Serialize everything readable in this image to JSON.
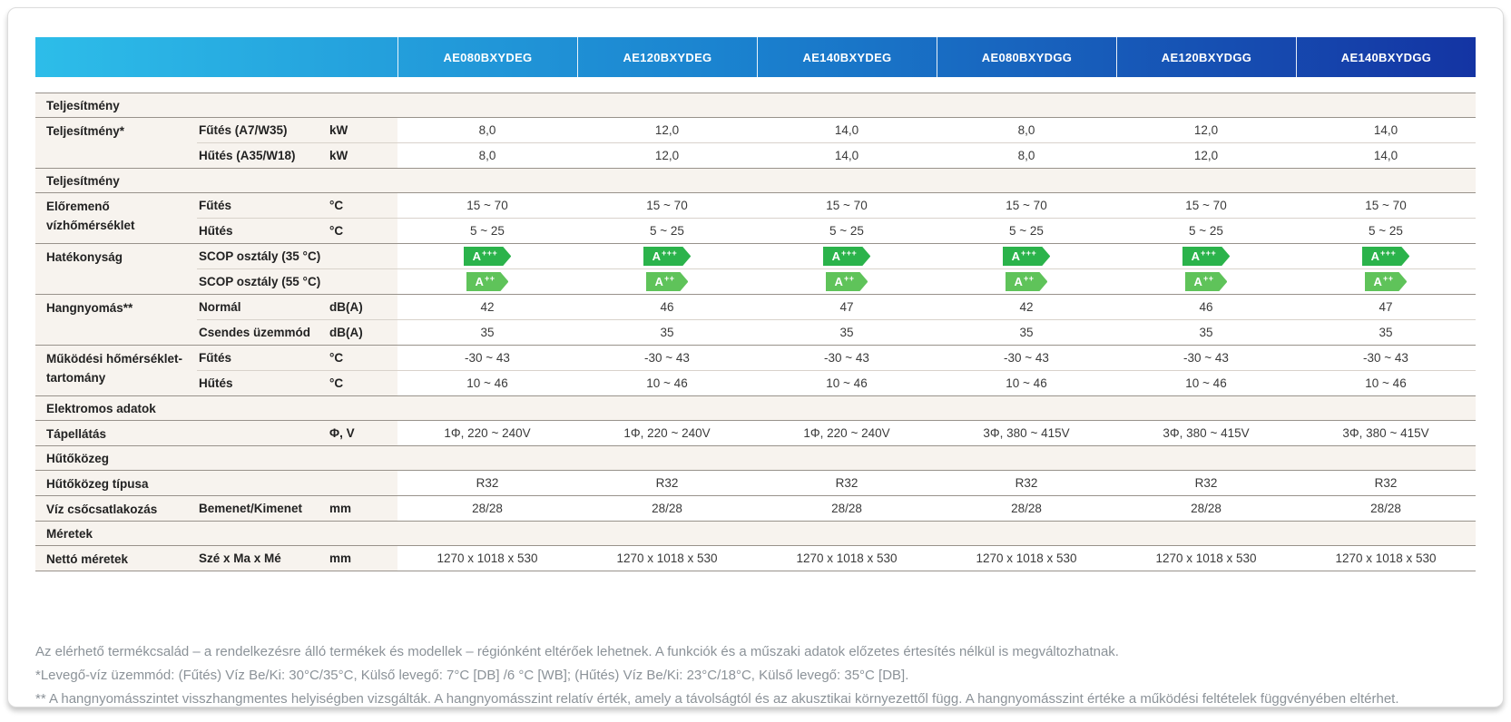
{
  "header": {
    "models": [
      "AE080BXYDEG",
      "AE120BXYDEG",
      "AE140BXYDEG",
      "AE080BXYDGG",
      "AE120BXYDGG",
      "AE140BXYDGG"
    ]
  },
  "table": {
    "rows": [
      {
        "type": "section",
        "label": "Teljesítmény"
      },
      {
        "type": "group",
        "label": "Teljesítmény*",
        "subs": [
          {
            "label": "Fűtés (A7/W35)",
            "unit": "kW",
            "values": [
              "8,0",
              "12,0",
              "14,0",
              "8,0",
              "12,0",
              "14,0"
            ]
          },
          {
            "label": "Hűtés (A35/W18)",
            "unit": "kW",
            "values": [
              "8,0",
              "12,0",
              "14,0",
              "8,0",
              "12,0",
              "14,0"
            ]
          }
        ]
      },
      {
        "type": "section",
        "label": "Teljesítmény"
      },
      {
        "type": "group",
        "label": "Előremenő vízhőmérséklet",
        "subs": [
          {
            "label": "Fűtés",
            "unit": "°C",
            "values": [
              "15 ~ 70",
              "15 ~ 70",
              "15 ~ 70",
              "15 ~ 70",
              "15 ~ 70",
              "15 ~ 70"
            ]
          },
          {
            "label": "Hűtés",
            "unit": "°C",
            "values": [
              "5 ~ 25",
              "5 ~ 25",
              "5 ~ 25",
              "5 ~ 25",
              "5 ~ 25",
              "5 ~ 25"
            ]
          }
        ]
      },
      {
        "type": "group",
        "label": "Hatékonyság",
        "subs": [
          {
            "label": "SCOP osztály (35 °C)",
            "unit": "",
            "badge": true,
            "values": [
              "A+++",
              "A+++",
              "A+++",
              "A+++",
              "A+++",
              "A+++"
            ]
          },
          {
            "label": "SCOP osztály (55 °C)",
            "unit": "",
            "badge": true,
            "values": [
              "A++",
              "A++",
              "A++",
              "A++",
              "A++",
              "A++"
            ]
          }
        ]
      },
      {
        "type": "group",
        "label": "Hangnyomás**",
        "subs": [
          {
            "label": "Normál",
            "unit": "dB(A)",
            "values": [
              "42",
              "46",
              "47",
              "42",
              "46",
              "47"
            ]
          },
          {
            "label": "Csendes üzemmód",
            "unit": "dB(A)",
            "values": [
              "35",
              "35",
              "35",
              "35",
              "35",
              "35"
            ]
          }
        ]
      },
      {
        "type": "group",
        "label": "Működési hőmérséklet-tartomány",
        "subs": [
          {
            "label": "Fűtés",
            "unit": "°C",
            "values": [
              "-30 ~ 43",
              "-30 ~ 43",
              "-30 ~ 43",
              "-30 ~ 43",
              "-30 ~ 43",
              "-30 ~ 43"
            ]
          },
          {
            "label": "Hűtés",
            "unit": "°C",
            "values": [
              "10 ~ 46",
              "10 ~ 46",
              "10 ~ 46",
              "10 ~ 46",
              "10 ~ 46",
              "10 ~ 46"
            ]
          }
        ]
      },
      {
        "type": "section",
        "label": "Elektromos adatok"
      },
      {
        "type": "group",
        "label": "Tápellátás",
        "subs": [
          {
            "label": "",
            "unit": "Φ, V",
            "values": [
              "1Φ, 220 ~ 240V",
              "1Φ, 220 ~ 240V",
              "1Φ, 220 ~ 240V",
              "3Φ, 380 ~ 415V",
              "3Φ, 380 ~ 415V",
              "3Φ, 380 ~ 415V"
            ]
          }
        ]
      },
      {
        "type": "section",
        "label": "Hűtőközeg"
      },
      {
        "type": "group",
        "label": "Hűtőközeg típusa",
        "subs": [
          {
            "label": "",
            "unit": "",
            "values": [
              "R32",
              "R32",
              "R32",
              "R32",
              "R32",
              "R32"
            ]
          }
        ]
      },
      {
        "type": "group",
        "label": "Víz csőcsatlakozás",
        "subs": [
          {
            "label": "Bemenet/Kimenet",
            "unit": "mm",
            "values": [
              "28/28",
              "28/28",
              "28/28",
              "28/28",
              "28/28",
              "28/28"
            ]
          }
        ]
      },
      {
        "type": "section",
        "label": "Méretek"
      },
      {
        "type": "group",
        "label": "Nettó méretek",
        "subs": [
          {
            "label": "Szé x Ma x Mé",
            "unit": "mm",
            "values": [
              "1270 x 1018 x 530",
              "1270 x 1018 x 530",
              "1270 x 1018 x 530",
              "1270 x 1018 x 530",
              "1270 x 1018 x 530",
              "1270 x 1018 x 530"
            ]
          }
        ]
      }
    ]
  },
  "footnotes": [
    "Az elérhető termékcsalád – a rendelkezésre álló termékek és modellek – régiónként eltérőek lehetnek. A funkciók és a műszaki adatok előzetes értesítés nélkül is megváltozhatnak.",
    "*Levegő-víz üzemmód: (Fűtés) Víz Be/Ki: 30°C/35°C, Külső levegő: 7°C [DB] /6 °C [WB]; (Hűtés) Víz Be/Ki: 23°C/18°C, Külső levegő: 35°C [DB].",
    "** A hangnyomásszintet visszhangmentes helyiségben vizsgálták. A hangnyomásszint relatív érték, amely a távolságtól és az akusztikai környezettől függ. A hangnyomásszint értéke a működési feltételek függvényében eltérhet."
  ],
  "colors": {
    "header_gradient": [
      "#2dbde9",
      "#1a80ce",
      "#1434a3"
    ],
    "badges": {
      "A+++": "#2bb34b",
      "A++": "#5fc35a"
    },
    "section_bg": "#f7f3ee",
    "border_dark": "#98928b",
    "border_light": "#d8d2cb"
  }
}
